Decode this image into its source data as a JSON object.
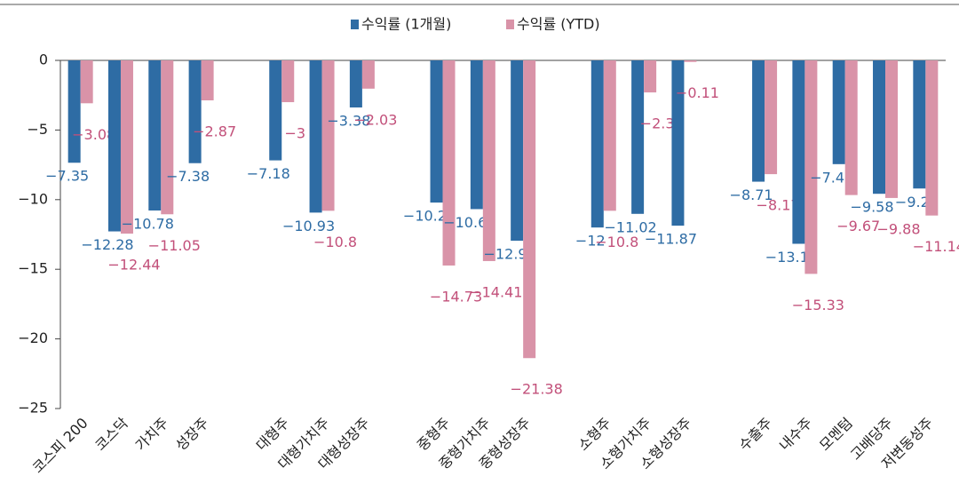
{
  "chart_data": {
    "type": "bar",
    "categories": [
      "코스피 200",
      "코스닥",
      "가치주",
      "성장주",
      null,
      "대형주",
      "대형가치주",
      "대형성장주",
      null,
      "중형주",
      "중형가치주",
      "중형성장주",
      null,
      "소형주",
      "소형가치주",
      "소형성장주",
      null,
      "수출주",
      "내수주",
      "모멘텀",
      "고배당주",
      "저변동성주"
    ],
    "series": [
      {
        "name": "수익률 (1개월)",
        "color": "#2e6ca4",
        "values": [
          -7.35,
          -12.28,
          -10.78,
          -7.38,
          null,
          -7.18,
          -10.93,
          -3.38,
          null,
          -10.21,
          -10.68,
          -12.95,
          null,
          -12,
          -11.02,
          -11.87,
          null,
          -8.71,
          -13.17,
          -7.45,
          -9.58,
          -9.2
        ],
        "value_labels": [
          "−7.35",
          "−12.28",
          "−10.78",
          "−7.38",
          null,
          "−7.18",
          "−10.93",
          "−3.38",
          null,
          "−10.21",
          "−10.68",
          "−12.95",
          null,
          "−12",
          "−11.02",
          "−11.87",
          null,
          "−8.71",
          "−13.17",
          "−7.45",
          "−9.58",
          "−9.2"
        ]
      },
      {
        "name": "수익률 (YTD)",
        "color": "#d993a8",
        "values": [
          -3.08,
          -12.44,
          -11.05,
          -2.87,
          null,
          -3,
          -10.8,
          -2.03,
          null,
          -14.73,
          -14.41,
          -21.38,
          null,
          -10.8,
          -2.3,
          -0.11,
          null,
          -8.17,
          -15.33,
          -9.67,
          -9.88,
          -11.14
        ],
        "value_labels": [
          "−3.08",
          "−12.44",
          "−11.05",
          "−2.87",
          null,
          "−3",
          "−10.8",
          "−2.03",
          null,
          "−14.73",
          "−14.41",
          "−21.38",
          null,
          "−10.8",
          "−2.3",
          "−0.11",
          null,
          "−8.17",
          "−15.33",
          "−9.67",
          "−9.88",
          "−11.14"
        ]
      }
    ],
    "ylim": [
      -25,
      0
    ],
    "yticks": [
      0,
      {
        "value": -5,
        "label": "−5"
      },
      {
        "value": -10,
        "label": "−10"
      },
      {
        "value": -15,
        "label": "−15"
      },
      {
        "value": -20,
        "label": "−20"
      },
      {
        "value": -25,
        "label": "−25"
      }
    ],
    "legend": "top"
  }
}
